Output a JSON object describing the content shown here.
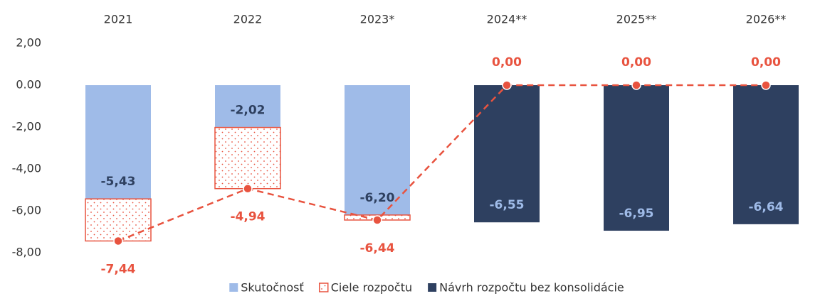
{
  "chart_data": {
    "type": "bar",
    "categories": [
      "2021",
      "2022",
      "2023*",
      "2024**",
      "2025**",
      "2026**"
    ],
    "ylim": [
      -8,
      2
    ],
    "yticks": [
      {
        "value": 2,
        "label": "2,00"
      },
      {
        "value": 0,
        "label": "0.00"
      },
      {
        "value": -2,
        "label": "-2,00"
      },
      {
        "value": -4,
        "label": "-4,00"
      },
      {
        "value": -6,
        "label": "-6,00"
      },
      {
        "value": -8,
        "label": "-8,00"
      }
    ],
    "grid": false,
    "legend": "bottom",
    "series": [
      {
        "name": "Skutočnosť",
        "color": "#9fbbe8",
        "values": [
          -5.43,
          -2.02,
          -6.2,
          null,
          null,
          null
        ],
        "value_labels": [
          "-5,43",
          "-2,02",
          "-6,20",
          null,
          null,
          null
        ]
      },
      {
        "name": "Ciele rozpočtu",
        "color": "#e8533f",
        "values": [
          -7.44,
          -4.94,
          -6.44,
          0,
          0,
          0
        ],
        "value_labels": [
          "-7,44",
          "-4,94",
          "-6,44",
          "0,00",
          "0,00",
          "0,00"
        ]
      },
      {
        "name": "Návrh rozpočtu bez konsolidácie",
        "color": "#2e4060",
        "values": [
          null,
          null,
          null,
          -6.55,
          -6.95,
          -6.64
        ],
        "value_labels": [
          null,
          null,
          null,
          "-6,55",
          "-6,95",
          "-6,64"
        ]
      }
    ]
  }
}
